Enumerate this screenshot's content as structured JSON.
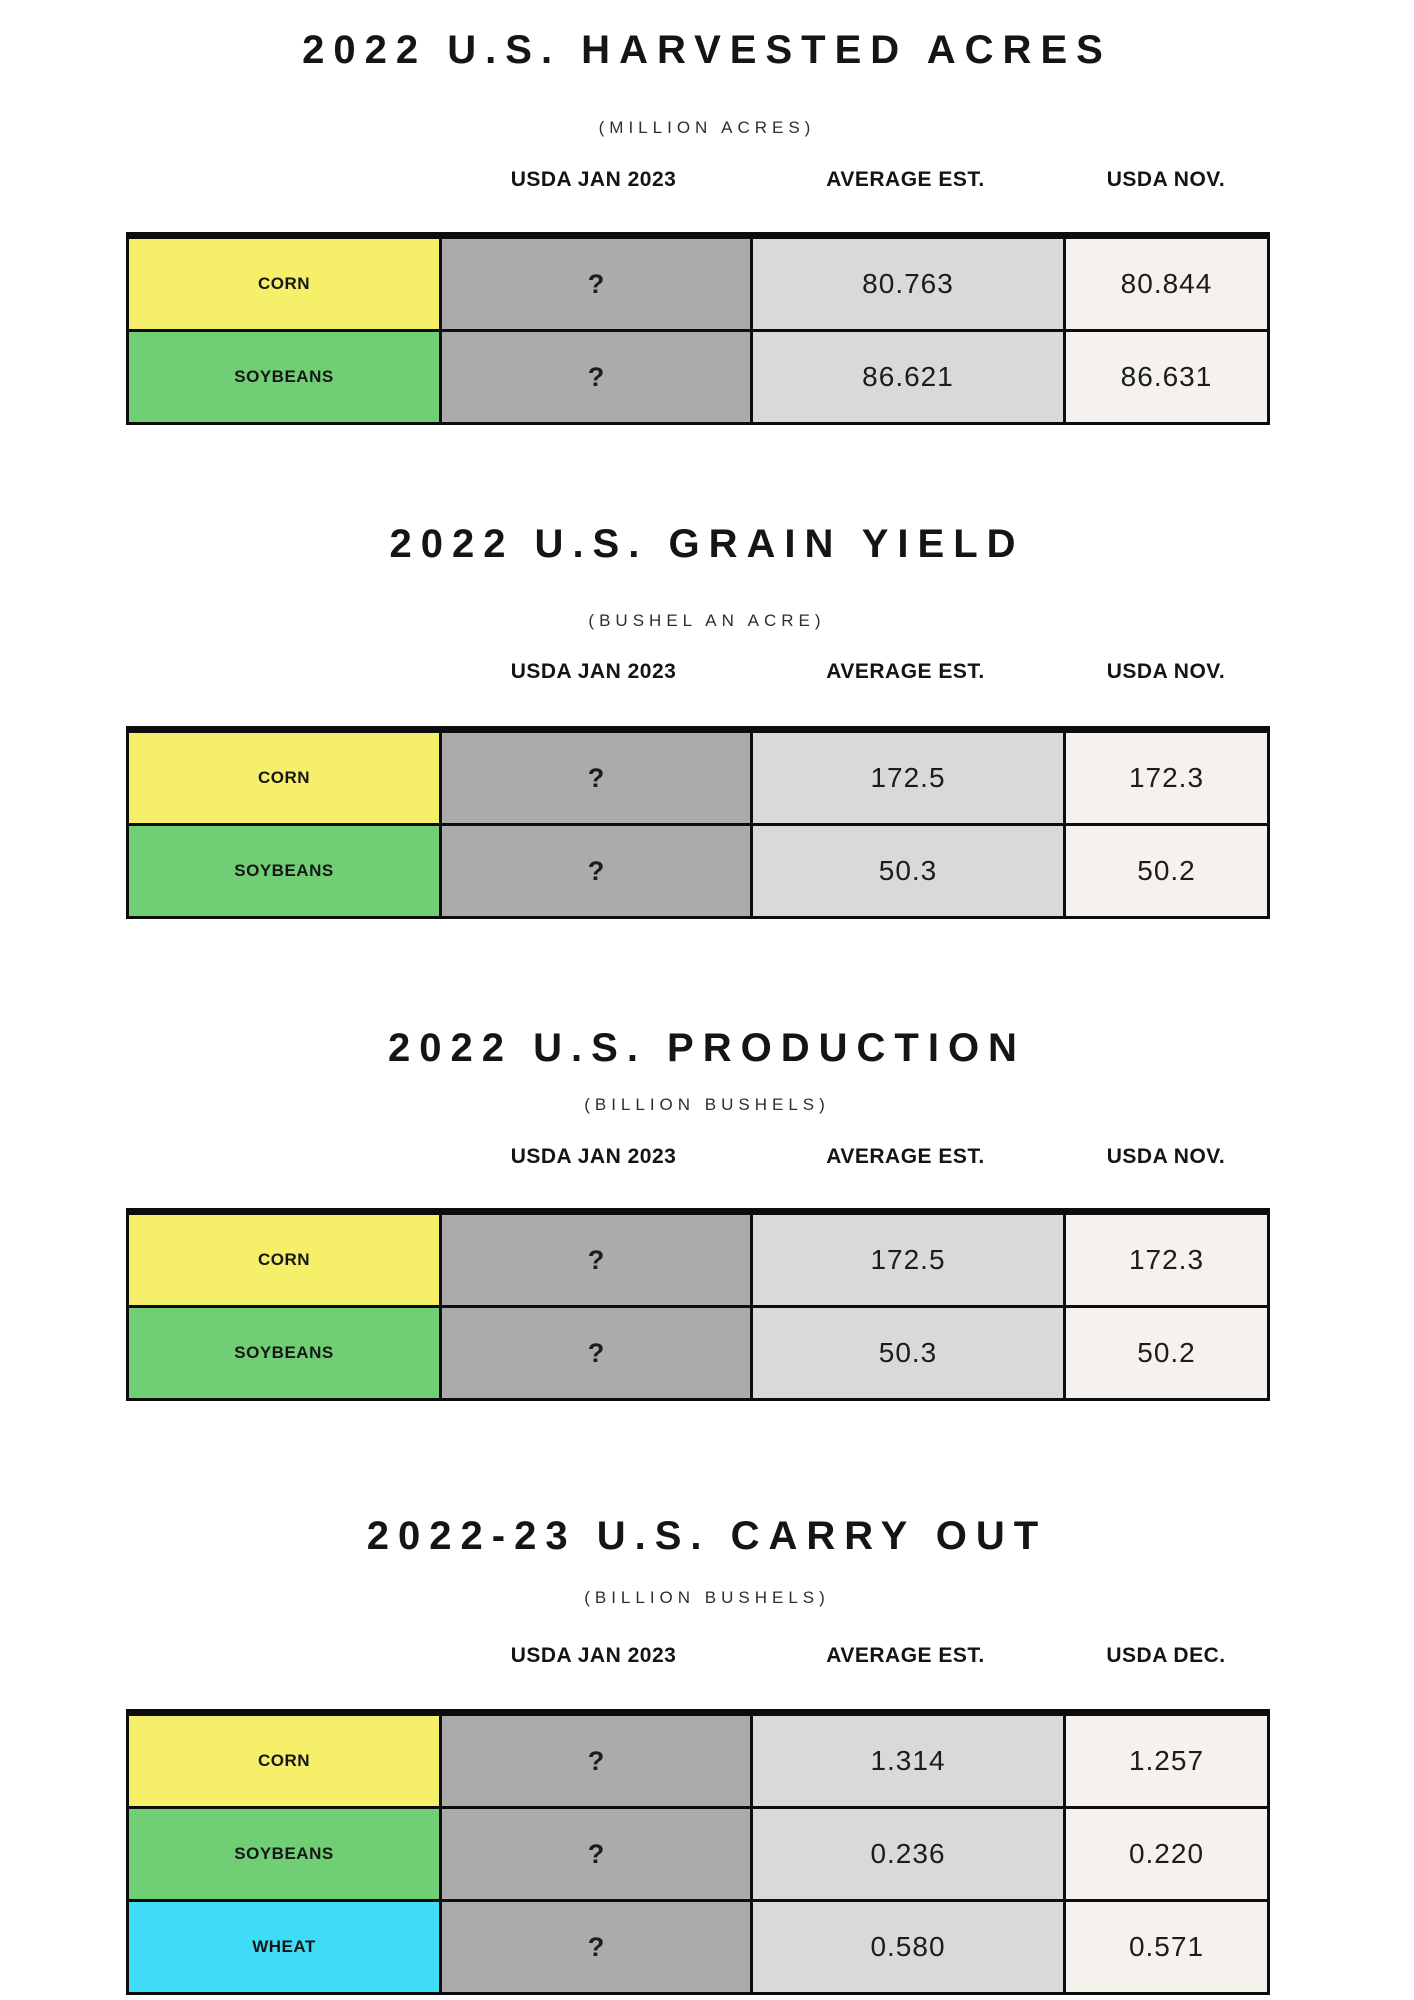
{
  "colors": {
    "corn_yellow": "#f5ef6a",
    "soybeans_green": "#70ce74",
    "wheat_cyan": "#3edcf7",
    "unknown_col_gray": "#ababab",
    "average_col_gray": "#d9d9d9",
    "usda_col_offwhite": "#f5f2ee",
    "table_border_black": "#0d0d0d",
    "page_background": "#ffffff"
  },
  "sections": [
    {
      "title": "2022 U.S. HARVESTED ACRES",
      "subtitle": "(MILLION ACRES)",
      "columns": [
        "USDA JAN 2023",
        "AVERAGE EST.",
        "USDA NOV."
      ],
      "rows": [
        {
          "label": "CORN",
          "color": "#f5ef6a",
          "values": [
            "?",
            "80.763",
            "80.844"
          ]
        },
        {
          "label": "SOYBEANS",
          "color": "#70ce74",
          "values": [
            "?",
            "86.621",
            "86.631"
          ]
        }
      ]
    },
    {
      "title": "2022 U.S. GRAIN YIELD",
      "subtitle": "(BUSHEL AN ACRE)",
      "columns": [
        "USDA JAN 2023",
        "AVERAGE EST.",
        "USDA NOV."
      ],
      "rows": [
        {
          "label": "CORN",
          "color": "#f5ef6a",
          "values": [
            "?",
            "172.5",
            "172.3"
          ]
        },
        {
          "label": "SOYBEANS",
          "color": "#70ce74",
          "values": [
            "?",
            "50.3",
            "50.2"
          ]
        }
      ]
    },
    {
      "title": "2022 U.S. PRODUCTION",
      "subtitle": "(BILLION BUSHELS)",
      "columns": [
        "USDA JAN 2023",
        "AVERAGE EST.",
        "USDA NOV."
      ],
      "rows": [
        {
          "label": "CORN",
          "color": "#f5ef6a",
          "values": [
            "?",
            "172.5",
            "172.3"
          ]
        },
        {
          "label": "SOYBEANS",
          "color": "#70ce74",
          "values": [
            "?",
            "50.3",
            "50.2"
          ]
        }
      ]
    },
    {
      "title": "2022-23 U.S. CARRY OUT",
      "subtitle": "(BILLION BUSHELS)",
      "columns": [
        "USDA JAN 2023",
        "AVERAGE EST.",
        "USDA DEC."
      ],
      "rows": [
        {
          "label": "CORN",
          "color": "#f5ef6a",
          "values": [
            "?",
            "1.314",
            "1.257"
          ]
        },
        {
          "label": "SOYBEANS",
          "color": "#70ce74",
          "values": [
            "?",
            "0.236",
            "0.220"
          ]
        },
        {
          "label": "WHEAT",
          "color": "#3edcf7",
          "values": [
            "?",
            "0.580",
            "0.571"
          ]
        }
      ]
    }
  ],
  "chart_data": [
    {
      "type": "table",
      "title": "2022 U.S. HARVESTED ACRES",
      "subtitle": "(MILLION ACRES)",
      "columns": [
        "USDA JAN 2023",
        "AVERAGE EST.",
        "USDA NOV."
      ],
      "categories": [
        "CORN",
        "SOYBEANS"
      ],
      "rows": [
        {
          "category": "CORN",
          "usda_jan_2023": "?",
          "average_est": 80.763,
          "usda_nov": 80.844
        },
        {
          "category": "SOYBEANS",
          "usda_jan_2023": "?",
          "average_est": 86.621,
          "usda_nov": 86.631
        }
      ]
    },
    {
      "type": "table",
      "title": "2022 U.S. GRAIN YIELD",
      "subtitle": "(BUSHEL AN ACRE)",
      "columns": [
        "USDA JAN 2023",
        "AVERAGE EST.",
        "USDA NOV."
      ],
      "categories": [
        "CORN",
        "SOYBEANS"
      ],
      "rows": [
        {
          "category": "CORN",
          "usda_jan_2023": "?",
          "average_est": 172.5,
          "usda_nov": 172.3
        },
        {
          "category": "SOYBEANS",
          "usda_jan_2023": "?",
          "average_est": 50.3,
          "usda_nov": 50.2
        }
      ]
    },
    {
      "type": "table",
      "title": "2022 U.S. PRODUCTION",
      "subtitle": "(BILLION BUSHELS)",
      "columns": [
        "USDA JAN 2023",
        "AVERAGE EST.",
        "USDA NOV."
      ],
      "categories": [
        "CORN",
        "SOYBEANS"
      ],
      "rows": [
        {
          "category": "CORN",
          "usda_jan_2023": "?",
          "average_est": 172.5,
          "usda_nov": 172.3
        },
        {
          "category": "SOYBEANS",
          "usda_jan_2023": "?",
          "average_est": 50.3,
          "usda_nov": 50.2
        }
      ]
    },
    {
      "type": "table",
      "title": "2022-23 U.S. CARRY OUT",
      "subtitle": "(BILLION BUSHELS)",
      "columns": [
        "USDA JAN 2023",
        "AVERAGE EST.",
        "USDA DEC."
      ],
      "categories": [
        "CORN",
        "SOYBEANS",
        "WHEAT"
      ],
      "rows": [
        {
          "category": "CORN",
          "usda_jan_2023": "?",
          "average_est": 1.314,
          "usda_dec": 1.257
        },
        {
          "category": "SOYBEANS",
          "usda_jan_2023": "?",
          "average_est": 0.236,
          "usda_dec": 0.22
        },
        {
          "category": "WHEAT",
          "usda_jan_2023": "?",
          "average_est": 0.58,
          "usda_dec": 0.571
        }
      ]
    }
  ]
}
